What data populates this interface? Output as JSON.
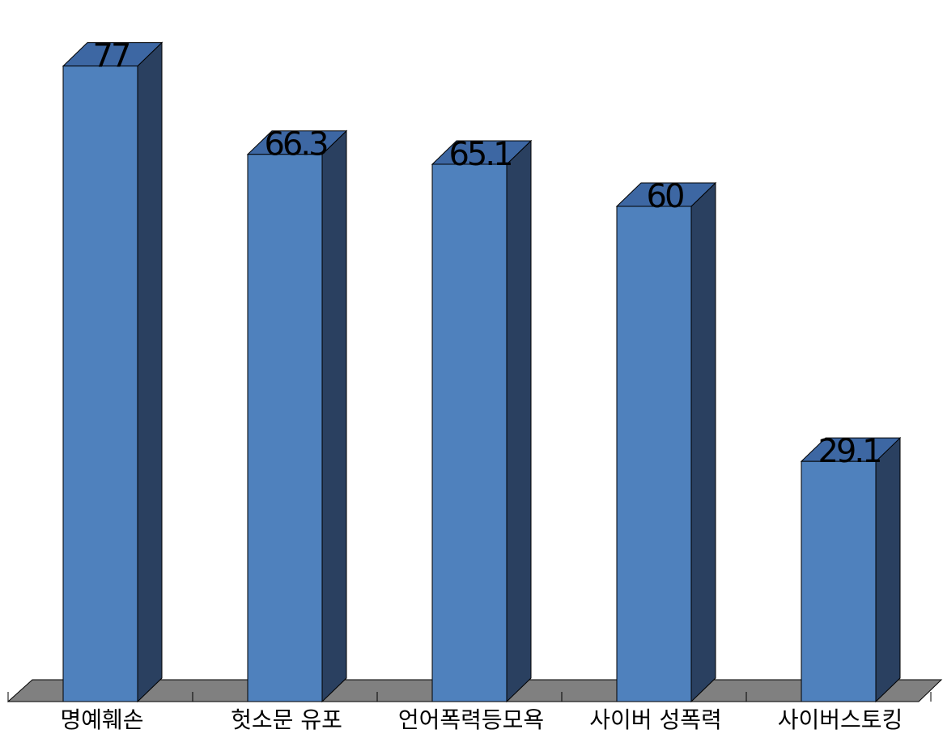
{
  "colors": {
    "bar_front": "#4f81bd",
    "bar_side": "#2a4060",
    "bar_top": "#3d67a3",
    "floor": "#808080",
    "stroke": "#000000"
  },
  "chart_data": {
    "type": "bar",
    "categories": [
      "명예훼손",
      "헛소문 유포",
      "언어폭력등모욕",
      "사이버 성폭력",
      "사이버스토킹"
    ],
    "values": [
      77,
      66.3,
      65.1,
      60,
      29.1
    ],
    "value_labels": [
      "77",
      "66.3",
      "65.1",
      "60",
      "29.1"
    ],
    "ylim": [
      0,
      100
    ],
    "grid": false,
    "legend": "none"
  }
}
